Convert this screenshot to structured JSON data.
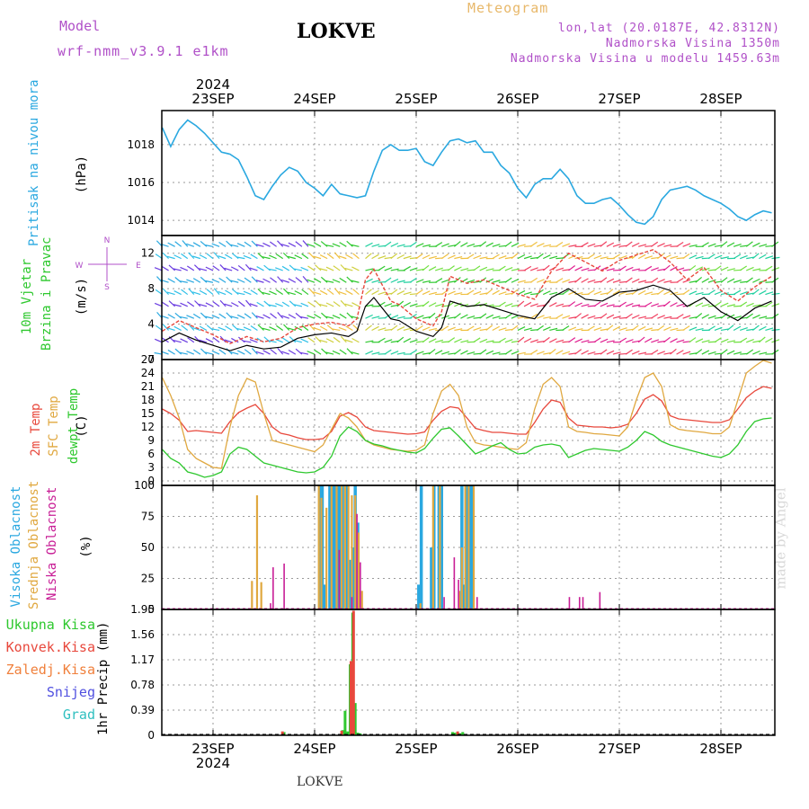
{
  "header": {
    "model_label": "Model",
    "model_version": "wrf-nmm_v3.9.1  e1km",
    "title": "LOKVE",
    "meteogram_label": "Meteogram",
    "coords": "lon,lat (20.0187E, 42.8312N)",
    "elevation": "Nadmorska Visina 1350m",
    "model_elevation": "Nadmorska Visina u modelu 1459.63m"
  },
  "time_axis": {
    "year": "2024",
    "days": [
      "23SEP",
      "24SEP",
      "25SEP",
      "26SEP",
      "27SEP",
      "28SEP"
    ]
  },
  "panel_labels": {
    "pressure": [
      "Pritisak na nivou mora",
      "(hPa)"
    ],
    "wind": [
      "10m Vjetar",
      "Brzina i Pravac",
      "(m/s)"
    ],
    "temp": [
      "2m Temp",
      "SFC Temp",
      "dewpt Temp",
      "(C)"
    ],
    "cloud": [
      "Visoka Oblacnost",
      "Srednja Oblacnost",
      "Niska Oblacnost",
      "(%)"
    ],
    "precip": [
      "1hr Precip (mm)"
    ]
  },
  "compass": {
    "north": "N",
    "south": "S",
    "east": "E",
    "west": "W"
  },
  "precip_legend": [
    "Ukupna Kisa",
    "Konvek.Kisa",
    "Zaledj.Kisa",
    "Snijeg",
    "Grad"
  ],
  "footer_station": "LOKVE",
  "credit": "made by Angel",
  "colors": {
    "pressure": "#2aa8e0",
    "temp2m": "#e8483c",
    "sfc": "#e0a840",
    "dewpt": "#2ec82e",
    "cloud_high": "#2aa8e0",
    "cloud_mid": "#e0a840",
    "cloud_low": "#c81e96",
    "rain_total": "#2ec82e",
    "rain_conv": "#e8483c",
    "rain_frz": "#f0803c",
    "snow": "#5050e0",
    "hail": "#30c0c0",
    "wind_speed": "#000000",
    "wind_gust": "#e8483c",
    "axis_purple": "#b050c8"
  },
  "chart_data": [
    {
      "type": "line",
      "title": "Pritisak na nivou mora",
      "ylabel": "(hPa)",
      "ylim": [
        1013.2,
        1019.8
      ],
      "yticks": [
        1014,
        1016,
        1018
      ],
      "x_unit": "hours from 2024-09-22 12 UTC (day ticks at 12, 36, 60, 84, 108, 132)",
      "xlim": [
        0,
        144
      ],
      "series": [
        {
          "name": "Pritisak na nivou mora",
          "x": [
            0,
            2,
            4,
            6,
            8,
            10,
            12,
            14,
            16,
            18,
            20,
            22,
            24,
            26,
            28,
            30,
            32,
            34,
            36,
            38,
            40,
            42,
            44,
            46,
            48,
            50,
            52,
            54,
            56,
            58,
            60,
            62,
            64,
            66,
            68,
            70,
            72,
            74,
            76,
            78,
            80,
            82,
            84,
            86,
            88,
            90,
            92,
            94,
            96,
            98,
            100,
            102,
            104,
            106,
            108,
            110,
            112,
            114,
            116,
            118,
            120,
            122,
            124,
            126,
            128,
            130,
            132,
            134,
            136,
            138,
            140,
            142,
            144
          ],
          "y": [
            1018.9,
            1017.9,
            1018.8,
            1019.3,
            1019.0,
            1018.6,
            1018.1,
            1017.6,
            1017.5,
            1017.2,
            1016.3,
            1015.3,
            1015.1,
            1015.8,
            1016.4,
            1016.8,
            1016.6,
            1016.0,
            1015.7,
            1015.3,
            1015.9,
            1015.4,
            1015.3,
            1015.2,
            1015.3,
            1016.6,
            1017.7,
            1018.0,
            1017.7,
            1017.7,
            1017.8,
            1017.1,
            1016.9,
            1017.6,
            1018.2,
            1018.3,
            1018.1,
            1018.2,
            1017.6,
            1017.6,
            1016.9,
            1016.5,
            1015.7,
            1015.2,
            1015.9,
            1016.2,
            1016.2,
            1016.7,
            1016.2,
            1015.3,
            1014.9,
            1014.9,
            1015.1,
            1015.2,
            1014.8,
            1014.3,
            1013.9,
            1013.8,
            1014.2,
            1015.1,
            1015.6,
            1015.7,
            1015.8,
            1015.6,
            1015.3,
            1015.1,
            1014.9,
            1014.6,
            1014.2,
            1014.0,
            1014.3,
            1014.5,
            1014.4
          ]
        }
      ]
    },
    {
      "type": "line",
      "title": "10m Vjetar Brzina i Pravac",
      "ylabel": "(m/s)",
      "ylim": [
        0,
        14
      ],
      "yticks": [
        0,
        4,
        8,
        12
      ],
      "xlim": [
        0,
        144
      ],
      "series": [
        {
          "name": "speed",
          "x": [
            0,
            4,
            8,
            12,
            16,
            20,
            24,
            28,
            32,
            36,
            40,
            44,
            46,
            48,
            50,
            52,
            54,
            56,
            60,
            64,
            66,
            68,
            72,
            76,
            80,
            84,
            88,
            92,
            96,
            100,
            104,
            108,
            112,
            116,
            120,
            124,
            128,
            132,
            136,
            140,
            144
          ],
          "y": [
            2.0,
            3.0,
            2.2,
            1.6,
            1.0,
            1.6,
            1.2,
            1.4,
            2.4,
            2.8,
            3.0,
            2.6,
            3.2,
            6.0,
            7.0,
            5.8,
            4.6,
            4.4,
            3.2,
            2.6,
            3.6,
            6.6,
            6.0,
            6.2,
            5.6,
            5.0,
            4.6,
            7.0,
            8.0,
            6.8,
            6.6,
            7.6,
            7.8,
            8.4,
            7.8,
            6.0,
            7.0,
            5.4,
            4.4,
            5.8,
            6.6
          ]
        },
        {
          "name": "gust",
          "x": [
            0,
            4,
            8,
            12,
            16,
            20,
            24,
            28,
            32,
            36,
            40,
            44,
            46,
            48,
            50,
            52,
            54,
            56,
            60,
            64,
            66,
            68,
            72,
            76,
            80,
            84,
            88,
            92,
            96,
            100,
            104,
            108,
            112,
            116,
            120,
            124,
            128,
            132,
            136,
            140,
            144
          ],
          "y": [
            3.2,
            4.4,
            3.6,
            2.8,
            1.8,
            2.6,
            2.0,
            2.4,
            3.6,
            4.0,
            4.2,
            3.8,
            4.6,
            9.0,
            10.2,
            8.4,
            6.6,
            6.2,
            4.6,
            3.8,
            5.4,
            9.4,
            8.6,
            9.0,
            8.2,
            7.4,
            6.8,
            10.0,
            12.0,
            11.0,
            10.0,
            11.2,
            11.8,
            12.4,
            11.0,
            9.0,
            10.4,
            7.8,
            6.6,
            8.2,
            9.4
          ]
        }
      ]
    },
    {
      "type": "line",
      "title": "2m Temp / SFC Temp / dewpt Temp",
      "ylabel": "(C)",
      "ylim": [
        -1,
        27
      ],
      "yticks": [
        0,
        3,
        6,
        9,
        12,
        15,
        18,
        21,
        24,
        27
      ],
      "xlim": [
        0,
        144
      ],
      "series": [
        {
          "name": "2m Temp",
          "x": [
            0,
            2,
            4,
            6,
            8,
            10,
            12,
            14,
            16,
            18,
            20,
            22,
            24,
            26,
            28,
            30,
            32,
            34,
            36,
            38,
            40,
            42,
            44,
            46,
            48,
            50,
            52,
            54,
            56,
            58,
            60,
            62,
            64,
            66,
            68,
            70,
            72,
            74,
            76,
            78,
            80,
            82,
            84,
            86,
            88,
            90,
            92,
            94,
            96,
            98,
            100,
            102,
            104,
            106,
            108,
            110,
            112,
            114,
            116,
            118,
            120,
            122,
            124,
            126,
            128,
            130,
            132,
            134,
            136,
            138,
            140,
            142,
            144
          ],
          "y": [
            16,
            15,
            13.5,
            11,
            11.2,
            11,
            10.8,
            10.6,
            13.2,
            15.2,
            16.2,
            17.0,
            15,
            12,
            10.6,
            10.2,
            9.6,
            9.2,
            9.2,
            9.4,
            11,
            14.4,
            15.2,
            14.2,
            12,
            11.2,
            11.0,
            10.8,
            10.6,
            10.4,
            10.5,
            10.9,
            13.5,
            15.5,
            16.5,
            16.2,
            14,
            11.7,
            11.2,
            10.8,
            10.8,
            10.6,
            10.4,
            10.4,
            13,
            16,
            18,
            17.5,
            14,
            12.4,
            12.2,
            12.0,
            12.0,
            11.8,
            12,
            12.6,
            15,
            18.2,
            19.2,
            17.8,
            14.5,
            13.8,
            13.6,
            13.4,
            13.2,
            13.0,
            13,
            13.6,
            16,
            18.5,
            20.0,
            21.0,
            20.6
          ]
        },
        {
          "name": "SFC Temp",
          "x": [
            0,
            2,
            4,
            6,
            8,
            10,
            12,
            14,
            16,
            18,
            20,
            22,
            24,
            26,
            28,
            30,
            32,
            34,
            36,
            38,
            40,
            42,
            44,
            46,
            48,
            50,
            52,
            54,
            56,
            58,
            60,
            62,
            64,
            66,
            68,
            70,
            72,
            74,
            76,
            78,
            80,
            82,
            84,
            86,
            88,
            90,
            92,
            94,
            96,
            98,
            100,
            102,
            104,
            106,
            108,
            110,
            112,
            114,
            116,
            118,
            120,
            122,
            124,
            126,
            128,
            130,
            132,
            134,
            136,
            138,
            140,
            142,
            144
          ],
          "y": [
            23,
            19,
            14,
            7,
            5,
            4,
            3,
            2.8,
            12,
            19,
            22.8,
            22,
            15,
            9,
            8.5,
            8,
            7.5,
            7,
            6.5,
            8,
            11.5,
            15,
            14,
            12,
            9,
            8,
            7.5,
            7,
            6.8,
            6.6,
            6.8,
            8,
            15,
            20,
            21.5,
            19,
            12,
            8.5,
            8,
            7.8,
            7.5,
            7.2,
            7,
            8.5,
            16,
            21.5,
            23,
            21,
            12,
            11,
            10.8,
            10.5,
            10.4,
            10.2,
            10,
            12,
            18,
            23,
            24,
            21,
            12.5,
            11.5,
            11.2,
            11,
            10.8,
            10.5,
            10.5,
            12,
            18,
            24,
            25.5,
            26.8,
            26.2
          ]
        },
        {
          "name": "dewpt Temp",
          "x": [
            0,
            2,
            4,
            6,
            8,
            10,
            12,
            14,
            16,
            18,
            20,
            22,
            24,
            26,
            28,
            30,
            32,
            34,
            36,
            38,
            40,
            42,
            44,
            46,
            48,
            50,
            52,
            54,
            56,
            58,
            60,
            62,
            64,
            66,
            68,
            70,
            72,
            74,
            76,
            78,
            80,
            82,
            84,
            86,
            88,
            90,
            92,
            94,
            96,
            98,
            100,
            102,
            104,
            106,
            108,
            110,
            112,
            114,
            116,
            118,
            120,
            122,
            124,
            126,
            128,
            130,
            132,
            134,
            136,
            138,
            140,
            142,
            144
          ],
          "y": [
            7,
            5,
            4,
            2,
            1.5,
            0.8,
            1.2,
            2.0,
            6.0,
            7.5,
            7.0,
            5.5,
            4.0,
            3.5,
            3.0,
            2.5,
            2.0,
            1.8,
            2.0,
            3.0,
            5.5,
            10.0,
            12.0,
            11.0,
            9.0,
            8.2,
            7.8,
            7.2,
            6.8,
            6.4,
            6.2,
            7.2,
            9.5,
            11.5,
            11.8,
            10.0,
            8.0,
            6.0,
            6.8,
            7.8,
            8.5,
            7.0,
            6.0,
            6.2,
            7.5,
            8.0,
            8.2,
            7.8,
            5.2,
            6.0,
            6.8,
            7.2,
            7.0,
            6.8,
            6.6,
            7.5,
            9.0,
            11.0,
            10.2,
            8.8,
            8.0,
            7.5,
            7.0,
            6.5,
            6.0,
            5.5,
            5.2,
            6.0,
            8.0,
            11.0,
            13.2,
            13.8,
            14.0
          ]
        }
      ]
    },
    {
      "type": "bar",
      "title": "Visoka / Srednja / Niska Oblacnost",
      "ylabel": "(%)",
      "ylim": [
        0,
        100
      ],
      "yticks": [
        0,
        25,
        50,
        75,
        100
      ],
      "xlim": [
        0,
        144
      ],
      "series": [
        {
          "name": "Visoka Oblacnost",
          "x": [
            37.2,
            37.8,
            38.4,
            39.6,
            40.2,
            40.8,
            41.4,
            42.0,
            42.6,
            43.8,
            44.4,
            45.0,
            45.6,
            46.2,
            60.6,
            61.2,
            63.6,
            64.2,
            65.4,
            66.0,
            70.8,
            71.4,
            72.0,
            72.6,
            73.2
          ],
          "y": [
            100,
            100,
            20,
            100,
            100,
            100,
            100,
            100,
            100,
            100,
            40,
            50,
            100,
            70,
            20,
            100,
            50,
            100,
            100,
            100,
            100,
            20,
            100,
            100,
            100
          ]
        },
        {
          "name": "Srednja Oblacnost",
          "x": [
            21.2,
            22.4,
            23.4,
            37.0,
            37.6,
            38.8,
            40.0,
            41.2,
            42.4,
            43.2,
            44.0,
            44.8,
            45.6,
            46.4,
            47.2,
            61.0,
            64.0,
            65.6,
            70.2,
            70.8,
            71.6,
            72.4,
            73.6
          ],
          "y": [
            23,
            92,
            22,
            100,
            90,
            82,
            100,
            100,
            100,
            100,
            100,
            92,
            92,
            62,
            15,
            5,
            100,
            100,
            15,
            50,
            100,
            100,
            100
          ]
        },
        {
          "name": "Niska Oblacnost",
          "x": [
            25.6,
            26.2,
            28.8,
            41.8,
            44.8,
            46.0,
            46.8,
            66.6,
            69.0,
            70.0,
            74.4,
            96.2,
            98.6,
            99.4,
            103.4
          ],
          "y": [
            5,
            34,
            37,
            48,
            10,
            77,
            38,
            10,
            42,
            24,
            10,
            10,
            10,
            10,
            14
          ]
        }
      ]
    },
    {
      "type": "bar",
      "title": "1hr Precip",
      "ylabel": "1hr Precip (mm)",
      "ylim": [
        0,
        1.95
      ],
      "yticks": [
        0,
        0.39,
        0.78,
        1.17,
        1.56,
        1.95
      ],
      "xlim": [
        0,
        144
      ],
      "series": [
        {
          "name": "Ukupna Kisa",
          "x": [
            28.8,
            42.6,
            43.2,
            43.8,
            44.4,
            45.0,
            45.6,
            46.2,
            46.8,
            68.6,
            69.2,
            70.4,
            71.0
          ],
          "y": [
            0.05,
            0.08,
            0.38,
            0.06,
            1.1,
            1.9,
            0.5,
            0.04,
            0.03,
            0.05,
            0.04,
            0.03,
            0.05
          ]
        },
        {
          "name": "Konvek.Kisa",
          "x": [
            28.4,
            42.4,
            44.6,
            45.2,
            69.8
          ],
          "y": [
            0.06,
            0.07,
            1.15,
            1.93,
            0.06
          ]
        }
      ]
    }
  ]
}
